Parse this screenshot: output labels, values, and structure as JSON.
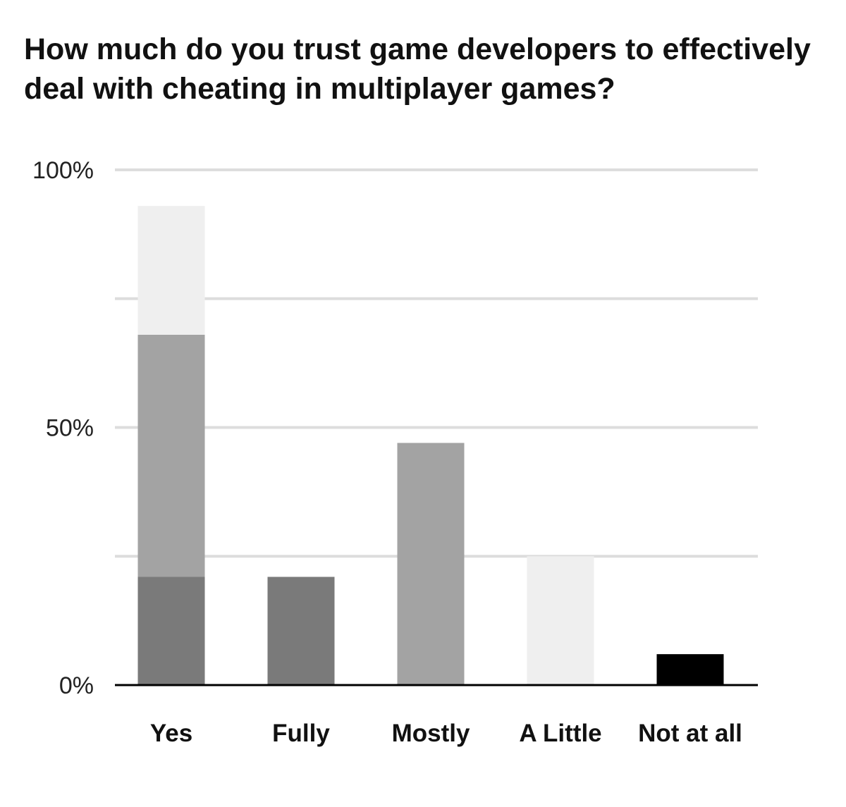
{
  "chart_data": {
    "type": "bar",
    "title": "How much do you trust game developers to effectively deal with cheating in multiplayer games?",
    "xlabel": "",
    "ylabel": "",
    "ylim": [
      0,
      100
    ],
    "y_ticks": [
      {
        "value": 0,
        "label": "0%"
      },
      {
        "value": 25,
        "label": ""
      },
      {
        "value": 50,
        "label": "50%"
      },
      {
        "value": 75,
        "label": ""
      },
      {
        "value": 100,
        "label": "100%"
      }
    ],
    "grid": true,
    "legend": "none",
    "categories": [
      "Yes",
      "Fully",
      "Mostly",
      "A Little",
      "Not at all"
    ],
    "bars": [
      {
        "category": "Yes",
        "segments": [
          {
            "value": 21,
            "color": "#7a7a7a"
          },
          {
            "value": 47,
            "color": "#a3a3a3"
          },
          {
            "value": 25,
            "color": "#efefef"
          }
        ]
      },
      {
        "category": "Fully",
        "segments": [
          {
            "value": 21,
            "color": "#7a7a7a"
          }
        ]
      },
      {
        "category": "Mostly",
        "segments": [
          {
            "value": 47,
            "color": "#a3a3a3"
          }
        ]
      },
      {
        "category": "A Little",
        "segments": [
          {
            "value": 25,
            "color": "#efefef"
          }
        ]
      },
      {
        "category": "Not at all",
        "segments": [
          {
            "value": 6,
            "color": "#000000"
          }
        ]
      }
    ],
    "colors": {
      "gridline": "#dddddd",
      "axis": "#000000"
    }
  }
}
